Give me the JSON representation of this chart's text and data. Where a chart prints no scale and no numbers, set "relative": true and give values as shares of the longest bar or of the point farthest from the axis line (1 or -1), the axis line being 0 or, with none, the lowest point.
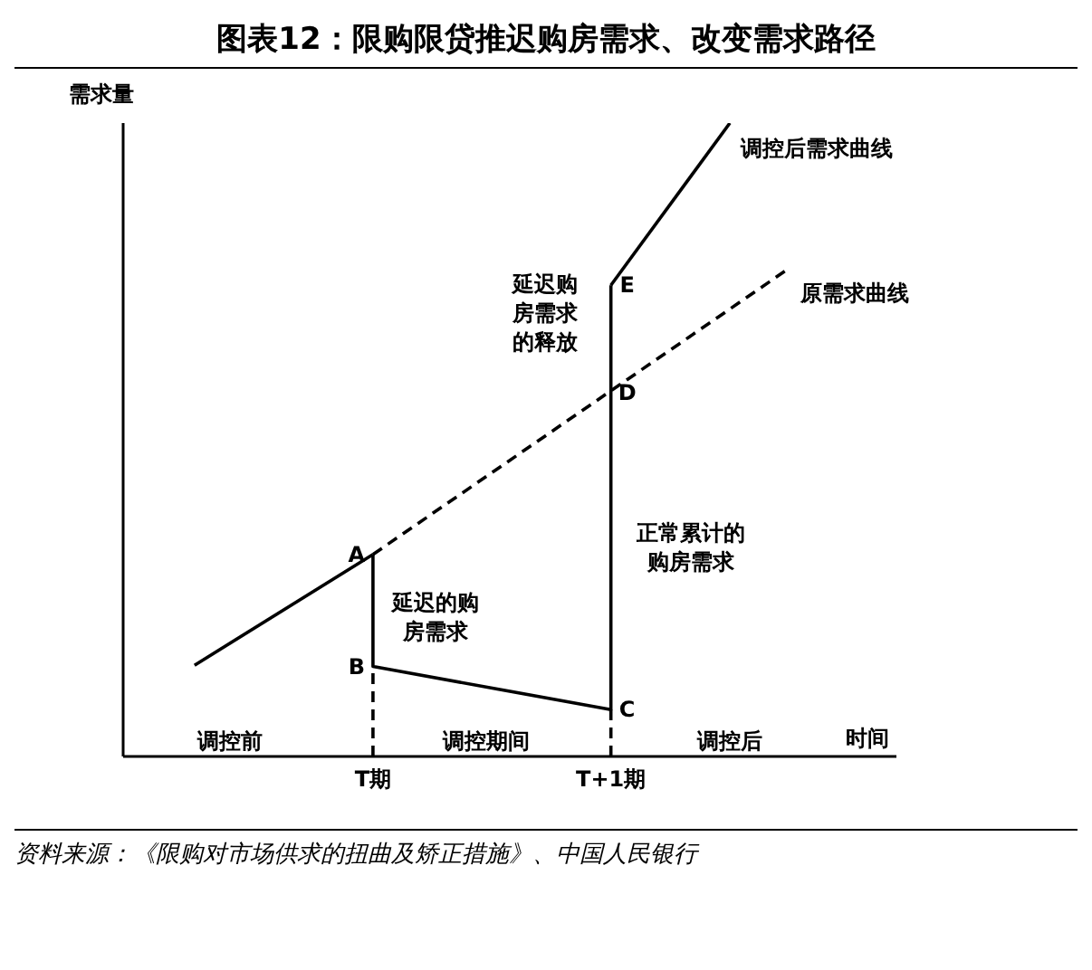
{
  "chart_data": {
    "type": "line",
    "title": "图表12：限购限贷推迟购房需求、改变需求路径",
    "xlabel": "时间",
    "ylabel": "需求量",
    "relative": true,
    "grid": false,
    "legend": false,
    "marker": "none",
    "tick_labels": "x",
    "categories": [
      null,
      null,
      null,
      null,
      "T期",
      null,
      null,
      null,
      "T+1期",
      null,
      null,
      null,
      null
    ],
    "series": [
      {
        "color": "#000000",
        "line_style": "solid",
        "values": [
          null,
          0.144,
          null,
          null,
          0.319,
          null,
          null,
          null,
          null,
          null,
          null,
          null,
          null
        ]
      },
      {
        "name": "原需求曲线",
        "color": "#000000",
        "line_style": "dashed",
        "values": [
          null,
          null,
          null,
          null,
          0.319,
          null,
          null,
          null,
          null,
          null,
          null,
          0.771,
          null
        ]
      },
      {
        "color": "#000000",
        "line_style": "solid",
        "x": [
          "T期",
          "T期",
          "T+1期",
          "T+1期"
        ],
        "values": [
          0.319,
          0.142,
          0.074,
          0.744
        ]
      },
      {
        "name": "调控后需求曲线",
        "color": "#000000",
        "line_style": "solid",
        "values": [
          null,
          null,
          null,
          null,
          null,
          null,
          null,
          null,
          0.744,
          null,
          1,
          null,
          null
        ]
      },
      {
        "color": "#000000",
        "line_style": "dashed",
        "x": [
          "T期",
          "T期"
        ],
        "values": [
          0,
          0.142
        ]
      },
      {
        "color": "#000000",
        "line_style": "dashed",
        "x": [
          "T+1期",
          "T+1期"
        ],
        "values": [
          0,
          0.074
        ]
      }
    ],
    "annotations": [
      {
        "text": "A",
        "x": "T期",
        "y": 0.319
      },
      {
        "text": "B",
        "x": "T期",
        "y": 0.142
      },
      {
        "text": "C",
        "x": "T+1期",
        "y": 0.074
      },
      {
        "text": "D",
        "x": "T+1期",
        "y": 0.574
      },
      {
        "text": "E",
        "x": "T+1期",
        "y": 0.744
      },
      "延迟的购房需求",
      "正常累计的购房需求",
      "延迟购房需求的释放",
      "调控前",
      "调控期间",
      "调控后",
      "资料来源：《限购对市场供求的扭曲及矫正措施》、中国人民银行"
    ]
  }
}
